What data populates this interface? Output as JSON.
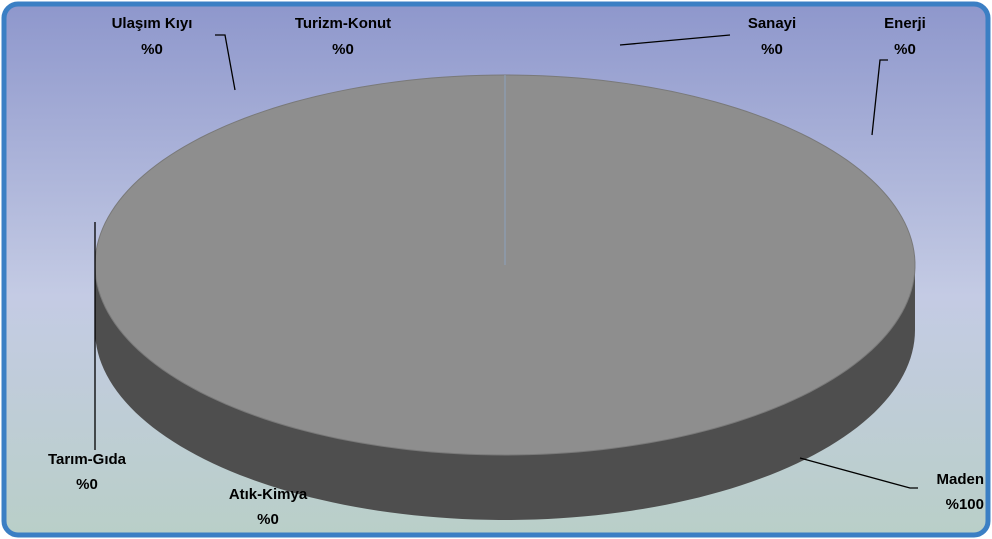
{
  "chart_data": {
    "type": "pie",
    "categories": [
      "Sanayi",
      "Enerji",
      "Maden",
      "Atık-Kimya",
      "Tarım-Gıda",
      "Ulaşım Kıyı",
      "Turizm-Konut"
    ],
    "values": [
      0,
      0,
      100,
      0,
      0,
      0,
      0
    ],
    "value_labels": [
      "%0",
      "%0",
      "%100",
      "%0",
      "%0",
      "%0",
      "%0"
    ],
    "colors": [
      "#4a86c0",
      "#d5702a",
      "#8e8e8e",
      "#e0a800",
      "#3b5faa",
      "#5f9a3a",
      "#a5c0e0"
    ]
  }
}
